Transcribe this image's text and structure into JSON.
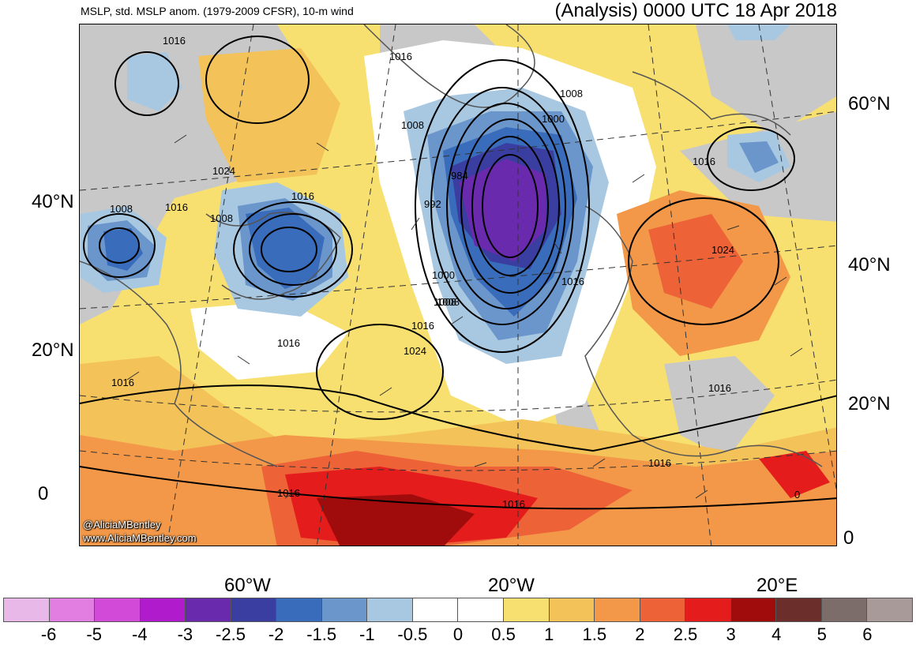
{
  "header": {
    "left_title": "MSLP, std. MSLP anom. (1979-2009 CFSR), 10-m wind",
    "right_title": "(Analysis) 0000 UTC 18 Apr 2018"
  },
  "map": {
    "lat_labels_left": [
      "40°N",
      "20°N",
      "0"
    ],
    "lat_labels_right": [
      "60°N",
      "40°N",
      "20°N",
      "0"
    ],
    "lon_labels": [
      "60°W",
      "20°W",
      "20°E"
    ],
    "isobar_labels": [
      "1016",
      "1016",
      "1024",
      "1008",
      "1008",
      "1016",
      "1008",
      "1016",
      "1016",
      "1016",
      "1008",
      "1000",
      "984",
      "992",
      "1008",
      "1000",
      "1008",
      "1016",
      "1024",
      "1016",
      "1016",
      "1024",
      "1016",
      "1016",
      "1016",
      "1016",
      "0"
    ],
    "credits": [
      "@AliciaMBentley",
      "www.AliciaMBentley.com"
    ]
  },
  "colorbar": {
    "colors": [
      "#e8b8e8",
      "#e27ee2",
      "#d24ad8",
      "#b01ccc",
      "#6a2aae",
      "#3a3ea0",
      "#3a6cbc",
      "#6a96cc",
      "#a8c8e2",
      "#ffffff",
      "#ffffff",
      "#f8e070",
      "#f3c258",
      "#f29848",
      "#ee6238",
      "#e41c1c",
      "#a00c0c",
      "#6c2e2a",
      "#7c6c6a",
      "#a89a98"
    ],
    "labels": [
      "-6",
      "-5",
      "-4",
      "-3",
      "-2.5",
      "-2",
      "-1.5",
      "-1",
      "-0.5",
      "0",
      "0.5",
      "1",
      "1.5",
      "2",
      "2.5",
      "3",
      "4",
      "5",
      "6"
    ]
  }
}
